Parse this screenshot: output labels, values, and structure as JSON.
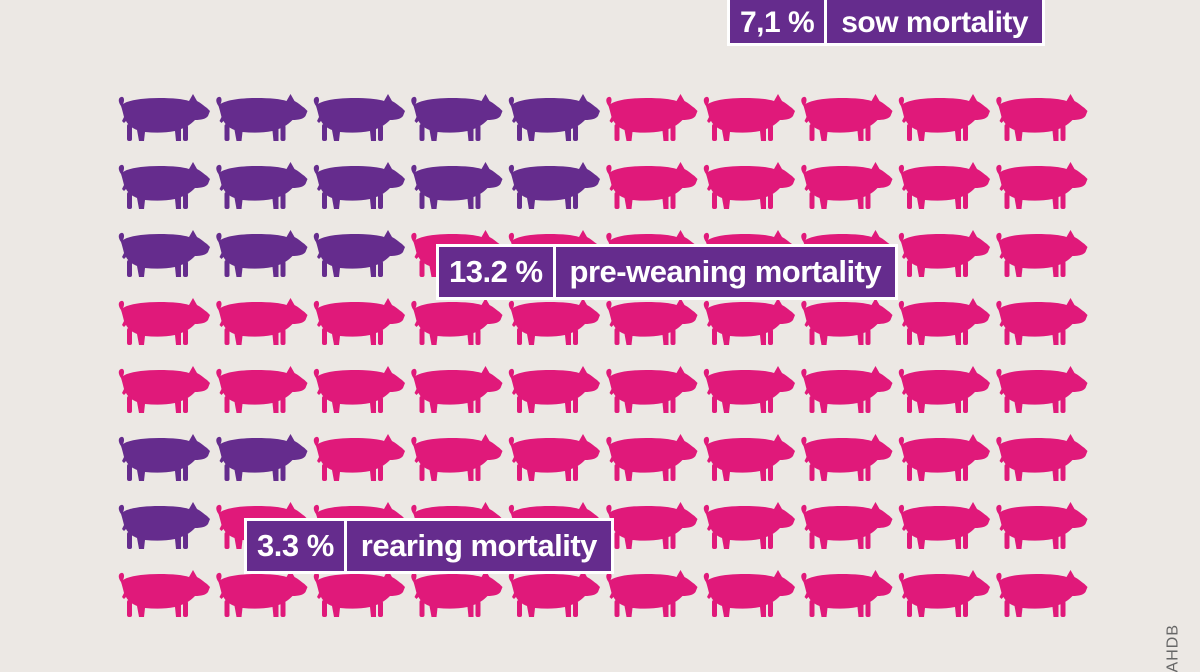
{
  "colors": {
    "background": "#ece8e4",
    "dead": "#652c8d",
    "alive": "#e0197a",
    "label_bg": "#652c8d",
    "label_border": "#ffffff"
  },
  "chart_data": {
    "type": "pictogram",
    "grid": {
      "rows": 8,
      "cols": 10
    },
    "icon": "pig-icon",
    "rows": [
      {
        "dead_units": 5
      },
      {
        "dead_units": 5
      },
      {
        "dead_units": 3.2
      },
      {
        "dead_units": 0
      },
      {
        "dead_units": 0
      },
      {
        "dead_units": 2
      },
      {
        "dead_units": 1.3
      },
      {
        "dead_units": 0
      }
    ],
    "annotations": [
      {
        "value": "7,1 %",
        "label": "sow mortality"
      },
      {
        "value": "13.2 %",
        "label": "pre-weaning mortality"
      },
      {
        "value": "3.3 %",
        "label": "rearing mortality"
      }
    ]
  },
  "labels": {
    "sow": {
      "value": "7,1 %",
      "text": "sow mortality"
    },
    "preweaning": {
      "value": "13.2 %",
      "text": "pre-weaning mortality"
    },
    "rearing": {
      "value": "3.3 %",
      "text": "rearing mortality"
    }
  },
  "credit": "AHDB"
}
